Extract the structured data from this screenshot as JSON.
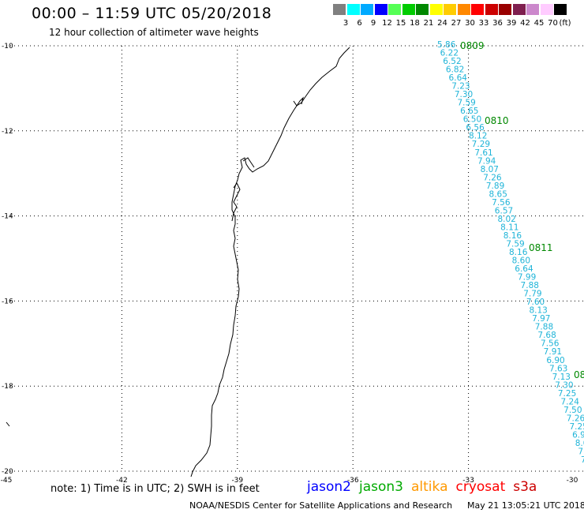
{
  "title": "00:00 – 11:59 UTC 05/20/2018",
  "subtitle": "12 hour collection of altimeter wave heights",
  "color_legend": {
    "unit": "(ft)",
    "bins": [
      {
        "label": "3",
        "color": "#808080"
      },
      {
        "label": "6",
        "color": "#00ffff"
      },
      {
        "label": "9",
        "color": "#00aaff"
      },
      {
        "label": "12",
        "color": "#0000ff"
      },
      {
        "label": "15",
        "color": "#55ff55"
      },
      {
        "label": "18",
        "color": "#00cc00"
      },
      {
        "label": "21",
        "color": "#008800"
      },
      {
        "label": "24",
        "color": "#ffff00"
      },
      {
        "label": "27",
        "color": "#ffcc00"
      },
      {
        "label": "30",
        "color": "#ff8800"
      },
      {
        "label": "33",
        "color": "#ff0000"
      },
      {
        "label": "36",
        "color": "#cc0000"
      },
      {
        "label": "39",
        "color": "#990000"
      },
      {
        "label": "42",
        "color": "#7f1f4f"
      },
      {
        "label": "45",
        "color": "#cc88cc"
      },
      {
        "label": "70",
        "color": "#ffccff"
      },
      {
        "label": "",
        "color": "#000000"
      }
    ]
  },
  "axes": {
    "lat_labels": [
      "-10",
      "-12",
      "-14",
      "-16",
      "-18",
      "-20"
    ],
    "lon_labels": [
      "-45",
      "-42",
      "-39",
      "-36",
      "-33",
      "-30"
    ],
    "lat_range": [
      -20,
      -10
    ],
    "lon_range": [
      -45,
      -30
    ],
    "grid": "dotted"
  },
  "track": {
    "color": "#1fb4d8",
    "values": [
      "5.86",
      "6.22",
      "6.52",
      "6.82",
      "6.64",
      "7.23",
      "7.30",
      "7.59",
      "6.65",
      "6.50",
      "6.56",
      "8.12",
      "7.29",
      "7.61",
      "7.94",
      "8.07",
      "7.26",
      "7.89",
      "8.65",
      "7.56",
      "6.57",
      "8.02",
      "8.11",
      "8.16",
      "7.59",
      "8.16",
      "8.60",
      "6.64",
      "7.99",
      "7.88",
      "7.79",
      "7.60",
      "8.13",
      "7.97",
      "7.88",
      "7.68",
      "7.56",
      "7.91",
      "6.90",
      "7.63",
      "7.13",
      "7.30",
      "7.25",
      "7.24",
      "7.50",
      "7.26",
      "7.25",
      "6.9",
      "8.0",
      "7.",
      "7"
    ]
  },
  "time_labels": {
    "color": "#008800",
    "items": [
      "0809",
      "0810",
      "0811",
      "08"
    ]
  },
  "note": "note: 1) Time is in UTC; 2) SWH is in feet",
  "satellites": [
    {
      "name": "jason2",
      "color": "#0000ff"
    },
    {
      "name": "jason3",
      "color": "#00aa00"
    },
    {
      "name": "altika",
      "color": "#ff9900"
    },
    {
      "name": "cryosat",
      "color": "#ff0000"
    },
    {
      "name": "s3a",
      "color": "#cc0000"
    }
  ],
  "footer_left": "NOAA/NESDIS Center for Satellite Applications and Research",
  "footer_right": "May 21 13:05:21 UTC 2018"
}
